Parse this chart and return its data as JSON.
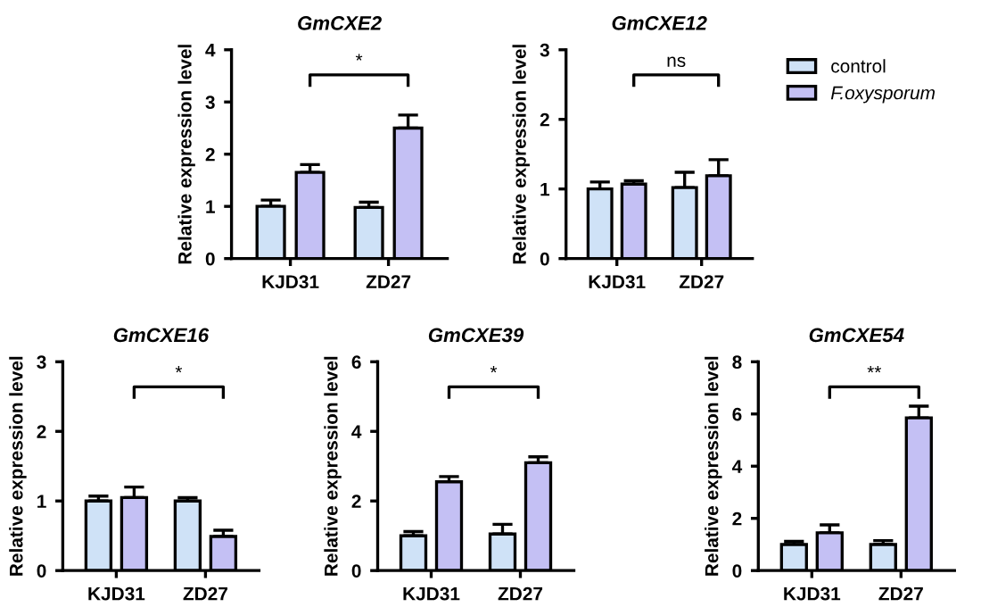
{
  "chart_data": [
    {
      "type": "bar",
      "title": "GmCXE2",
      "ylabel": "Relative expression level",
      "categories": [
        "KJD31",
        "ZD27"
      ],
      "ylim": [
        0,
        4
      ],
      "yticks": [
        0,
        1,
        2,
        3,
        4
      ],
      "grid": false,
      "legend": false,
      "annotations": [
        "*"
      ],
      "series": [
        {
          "color": "#cfe2f7",
          "values": [
            1.0,
            0.98
          ],
          "errors": [
            [
              1.0,
              1.12
            ],
            [
              0.98,
              1.08
            ]
          ]
        },
        {
          "color": "#c4c0f4",
          "values": [
            1.65,
            2.5
          ],
          "errors": [
            [
              1.65,
              1.8
            ],
            [
              2.5,
              2.75
            ]
          ]
        }
      ]
    },
    {
      "type": "bar",
      "title": "GmCXE12",
      "ylabel": "Relative expression level",
      "categories": [
        "KJD31",
        "ZD27"
      ],
      "ylim": [
        0,
        3
      ],
      "yticks": [
        0,
        1,
        2,
        3
      ],
      "grid": false,
      "legend": "right",
      "annotations": [
        "ns"
      ],
      "series": [
        {
          "name": "control",
          "color": "#cfe2f7",
          "values": [
            1.0,
            1.02
          ],
          "errors": [
            [
              1.0,
              1.1
            ],
            [
              1.02,
              1.24
            ]
          ]
        },
        {
          "name": "F.oxysporum",
          "color": "#c4c0f4",
          "values": [
            1.07,
            1.19
          ],
          "errors": [
            [
              1.07,
              1.12
            ],
            [
              1.19,
              1.42
            ]
          ]
        }
      ]
    },
    {
      "type": "bar",
      "title": "GmCXE16",
      "ylabel": "Relative expression level",
      "categories": [
        "KJD31",
        "ZD27"
      ],
      "ylim": [
        0,
        3
      ],
      "yticks": [
        0,
        1,
        2,
        3
      ],
      "grid": false,
      "legend": false,
      "annotations": [
        "*"
      ],
      "series": [
        {
          "color": "#cfe2f7",
          "values": [
            1.0,
            1.0
          ],
          "errors": [
            [
              1.0,
              1.07
            ],
            [
              1.0,
              1.05
            ]
          ]
        },
        {
          "color": "#c4c0f4",
          "values": [
            1.05,
            0.49
          ],
          "errors": [
            [
              1.05,
              1.2
            ],
            [
              0.49,
              0.58
            ]
          ]
        }
      ]
    },
    {
      "type": "bar",
      "title": "GmCXE39",
      "ylabel": "Relative expression level",
      "categories": [
        "KJD31",
        "ZD27"
      ],
      "ylim": [
        0,
        6
      ],
      "yticks": [
        0,
        2,
        4,
        6
      ],
      "grid": false,
      "legend": false,
      "annotations": [
        "*"
      ],
      "series": [
        {
          "color": "#cfe2f7",
          "values": [
            1.0,
            1.05
          ],
          "errors": [
            [
              1.0,
              1.12
            ],
            [
              1.05,
              1.33
            ]
          ]
        },
        {
          "color": "#c4c0f4",
          "values": [
            2.55,
            3.1
          ],
          "errors": [
            [
              2.55,
              2.7
            ],
            [
              3.1,
              3.27
            ]
          ]
        }
      ]
    },
    {
      "type": "bar",
      "title": "GmCXE54",
      "ylabel": "Relative expression level",
      "categories": [
        "KJD31",
        "ZD27"
      ],
      "ylim": [
        0,
        8
      ],
      "yticks": [
        0,
        2,
        4,
        6,
        8
      ],
      "grid": false,
      "legend": false,
      "annotations": [
        "**"
      ],
      "series": [
        {
          "color": "#cfe2f7",
          "values": [
            1.0,
            1.0
          ],
          "errors": [
            [
              1.0,
              1.12
            ],
            [
              1.0,
              1.15
            ]
          ]
        },
        {
          "color": "#c4c0f4",
          "values": [
            1.45,
            5.85
          ],
          "errors": [
            [
              1.45,
              1.75
            ],
            [
              5.85,
              6.3
            ]
          ]
        }
      ]
    }
  ]
}
